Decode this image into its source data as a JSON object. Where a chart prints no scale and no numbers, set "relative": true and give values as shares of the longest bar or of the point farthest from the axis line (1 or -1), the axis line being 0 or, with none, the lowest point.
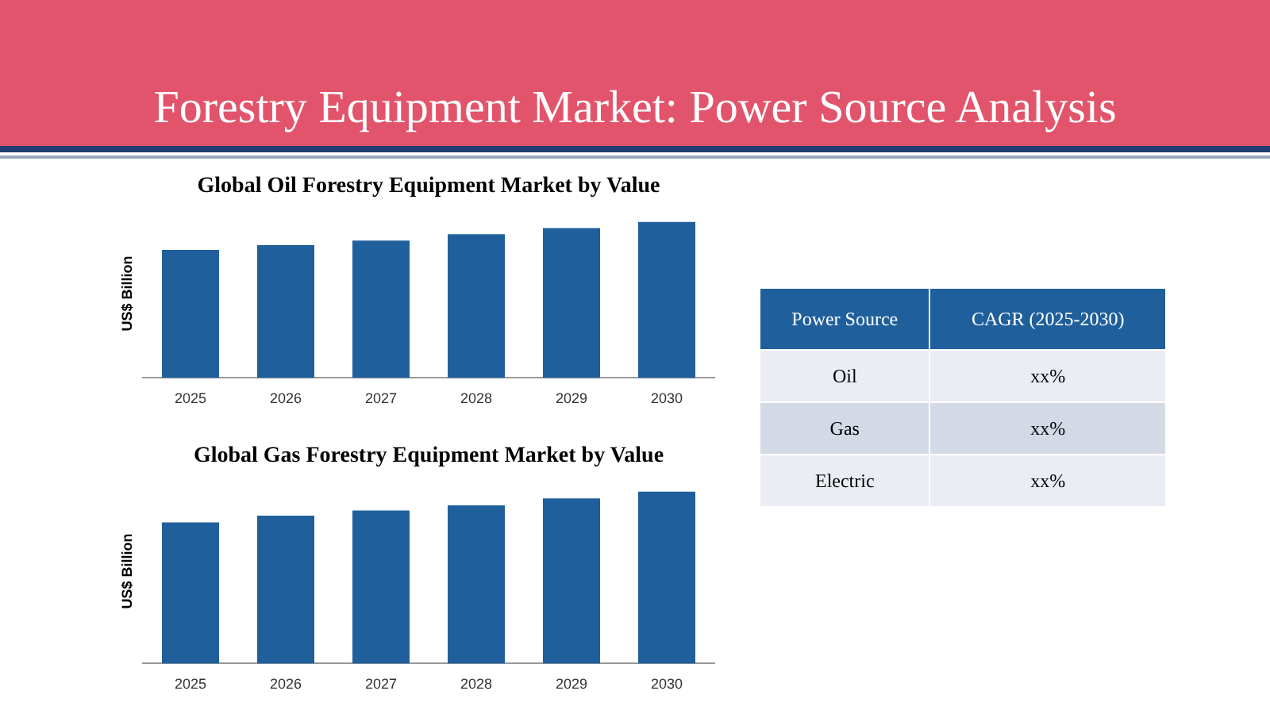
{
  "chart_data": [
    {
      "type": "other",
      "title": "Forestry Equipment Market: Power Source Analysis"
    },
    {
      "type": "bar",
      "title": "Global Oil Forestry Equipment Market by Value",
      "ylabel": "US$ Billion",
      "categories": [
        "2025",
        "2026",
        "2027",
        "2028",
        "2029",
        "2030"
      ],
      "relative": true,
      "color": "#1f5f9c",
      "values": [
        0.82,
        0.85,
        0.88,
        0.92,
        0.96,
        1
      ],
      "legend": false,
      "grid": false
    },
    {
      "type": "bar",
      "title": "Global Gas Forestry Equipment Market by Value",
      "ylabel": "US$ Billion",
      "categories": [
        "2025",
        "2026",
        "2027",
        "2028",
        "2029",
        "2030"
      ],
      "relative": true,
      "color": "#1f5f9c",
      "values": [
        0.82,
        0.86,
        0.89,
        0.92,
        0.96,
        1
      ],
      "legend": false,
      "grid": false
    },
    {
      "type": "other",
      "annotations": [
        "Power Source",
        "CAGR (2025-2030)",
        "Oil",
        "xx%",
        "Gas",
        "xx%",
        "Electric",
        "xx%"
      ]
    }
  ]
}
